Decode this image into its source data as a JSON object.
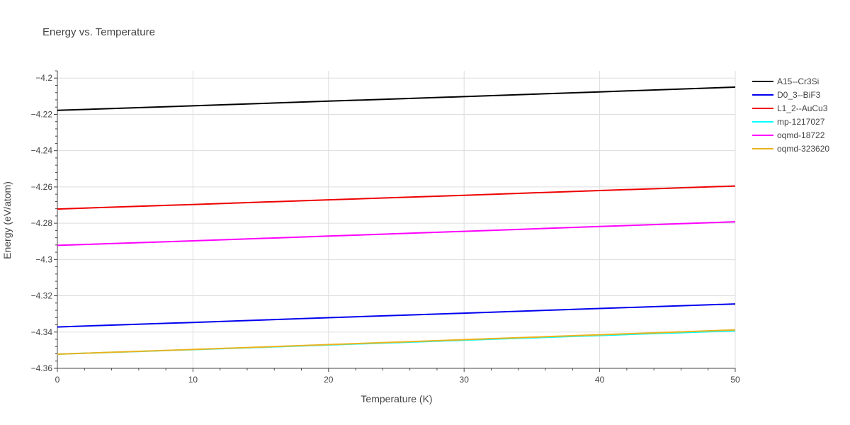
{
  "chart_data": {
    "type": "line",
    "title": "Energy vs. Temperature",
    "xlabel": "Temperature (K)",
    "ylabel": "Energy (eV/atom)",
    "xlim": [
      0,
      50
    ],
    "ylim": [
      -4.36,
      -4.196
    ],
    "xticks": [
      0,
      10,
      20,
      30,
      40,
      50
    ],
    "xtick_labels": [
      "0",
      "10",
      "20",
      "30",
      "40",
      "50"
    ],
    "yticks": [
      -4.2,
      -4.22,
      -4.24,
      -4.26,
      -4.28,
      -4.3,
      -4.32,
      -4.34,
      -4.36
    ],
    "ytick_labels": [
      "−4.2",
      "−4.22",
      "−4.24",
      "−4.26",
      "−4.28",
      "−4.3",
      "−4.32",
      "−4.34",
      "−4.36"
    ],
    "grid": true,
    "legend_position": "right",
    "series": [
      {
        "name": "A15--Cr3Si",
        "color": "#000000",
        "x": [
          0,
          10,
          20,
          30,
          40,
          50
        ],
        "y": [
          -4.2178,
          -4.2153,
          -4.2127,
          -4.2102,
          -4.2076,
          -4.205
        ]
      },
      {
        "name": "D0_3--BiF3",
        "color": "#0000ee",
        "x": [
          0,
          10,
          20,
          30,
          40,
          50
        ],
        "y": [
          -4.3372,
          -4.3347,
          -4.3321,
          -4.3296,
          -4.327,
          -4.3245
        ]
      },
      {
        "name": "L1_2--AuCu3",
        "color": "#ee0000",
        "x": [
          0,
          10,
          20,
          30,
          40,
          50
        ],
        "y": [
          -4.2722,
          -4.2697,
          -4.2671,
          -4.2646,
          -4.262,
          -4.2595
        ]
      },
      {
        "name": "mp-1217027",
        "color": "#00ffff",
        "x": [
          0,
          10,
          20,
          30,
          40,
          50
        ],
        "y": [
          -4.3522,
          -4.3497,
          -4.3471,
          -4.3445,
          -4.3419,
          -4.3393
        ]
      },
      {
        "name": "oqmd-18722",
        "color": "#ff00ff",
        "x": [
          0,
          10,
          20,
          30,
          40,
          50
        ],
        "y": [
          -4.2922,
          -4.2897,
          -4.2871,
          -4.2845,
          -4.2818,
          -4.2792
        ]
      },
      {
        "name": "oqmd-323620",
        "color": "#ecb21e",
        "x": [
          0,
          10,
          20,
          30,
          40,
          50
        ],
        "y": [
          -4.3522,
          -4.3496,
          -4.3469,
          -4.3442,
          -4.3415,
          -4.3388
        ]
      }
    ]
  }
}
